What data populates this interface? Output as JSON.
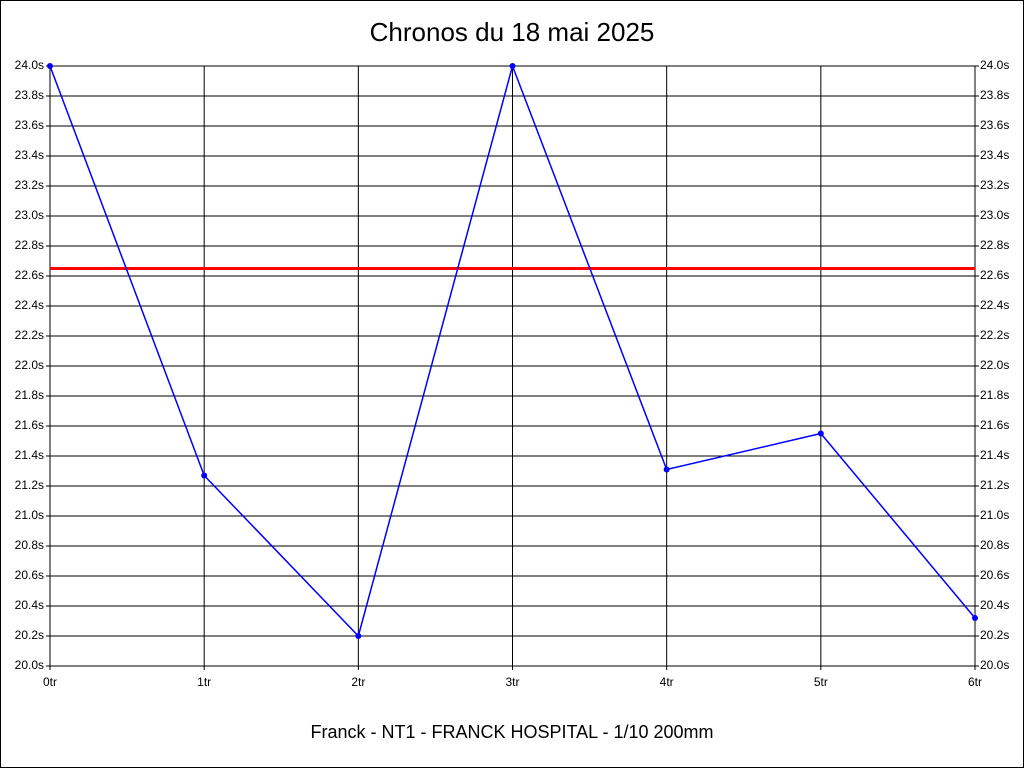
{
  "chart_data": {
    "type": "line",
    "title": "Chronos du 18 mai 2025",
    "x_label": "Franck - NT1 - FRANCK HOSPITAL - 1/10 200mm",
    "categories": [
      "0tr",
      "1tr",
      "2tr",
      "3tr",
      "4tr",
      "5tr",
      "6tr"
    ],
    "series": [
      {
        "color": "#0000ff",
        "values": [
          24.0,
          21.27,
          20.2,
          24.0,
          21.31,
          21.55,
          20.32
        ]
      }
    ],
    "reference_line": {
      "value": 22.65,
      "color": "#ff0000"
    },
    "ylim": [
      20.0,
      24.0
    ],
    "yticks": [
      {
        "value": 20.0,
        "label": "20.0s"
      },
      {
        "value": 20.2,
        "label": "20.2s"
      },
      {
        "value": 20.4,
        "label": "20.4s"
      },
      {
        "value": 20.6,
        "label": "20.6s"
      },
      {
        "value": 20.8,
        "label": "20.8s"
      },
      {
        "value": 21.0,
        "label": "21.0s"
      },
      {
        "value": 21.2,
        "label": "21.2s"
      },
      {
        "value": 21.4,
        "label": "21.4s"
      },
      {
        "value": 21.6,
        "label": "21.6s"
      },
      {
        "value": 21.8,
        "label": "21.8s"
      },
      {
        "value": 22.0,
        "label": "22.0s"
      },
      {
        "value": 22.2,
        "label": "22.2s"
      },
      {
        "value": 22.4,
        "label": "22.4s"
      },
      {
        "value": 22.6,
        "label": "22.6s"
      },
      {
        "value": 22.8,
        "label": "22.8s"
      },
      {
        "value": 23.0,
        "label": "23.0s"
      },
      {
        "value": 23.2,
        "label": "23.2s"
      },
      {
        "value": 23.4,
        "label": "23.4s"
      },
      {
        "value": 23.6,
        "label": "23.6s"
      },
      {
        "value": 23.8,
        "label": "23.8s"
      },
      {
        "value": 24.0,
        "label": "24.0s"
      }
    ],
    "grid": true
  }
}
